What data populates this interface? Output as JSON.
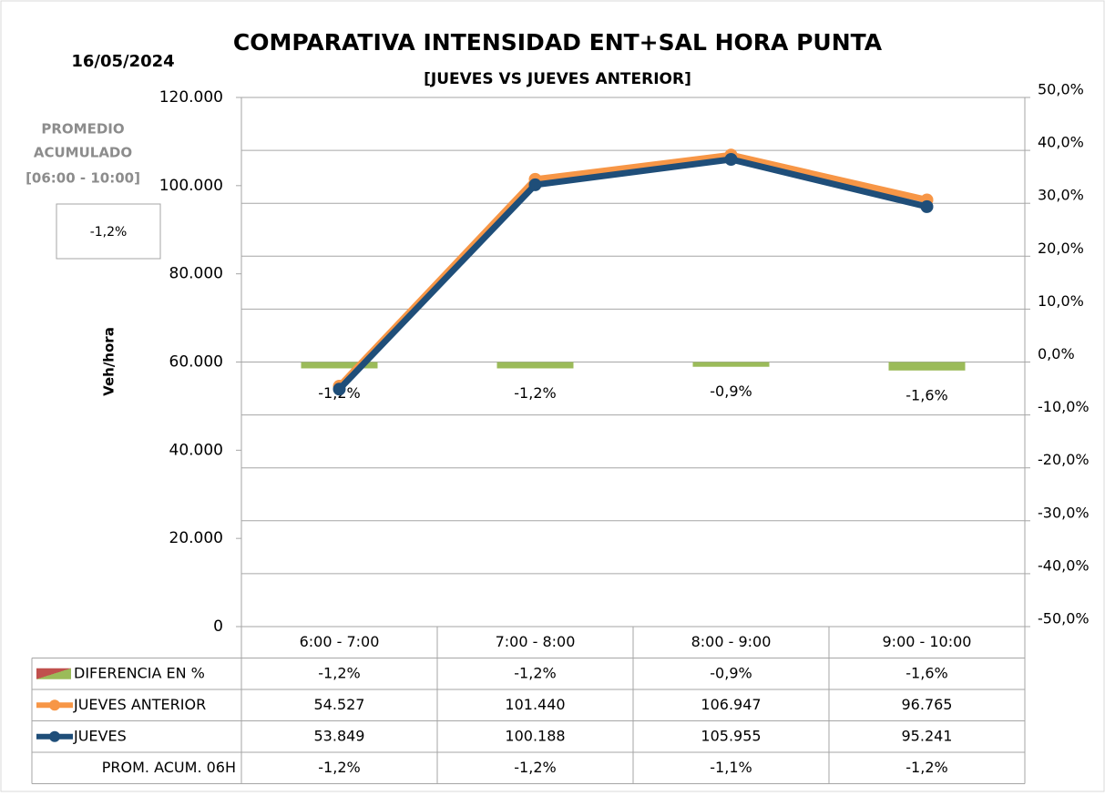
{
  "chart_data": {
    "type": "combo",
    "title": "COMPARATIVA INTENSIDAD ENT+SAL HORA PUNTA",
    "subtitle": "[JUEVES VS JUEVES ANTERIOR]",
    "date": "16/05/2024",
    "summary": {
      "title_lines": [
        "PROMEDIO",
        "ACUMULADO",
        "[06:00 - 10:00]"
      ],
      "value": -1.2,
      "value_label": "-1,2%"
    },
    "y_label": "Veh/hora",
    "categories": [
      "6:00 - 7:00",
      "7:00 - 8:00",
      "8:00 - 9:00",
      "9:00 - 10:00"
    ],
    "ylim": [
      0,
      120000
    ],
    "yticks": [
      0,
      {
        "value": 20000,
        "label": "20.000"
      },
      {
        "value": 40000,
        "label": "40.000"
      },
      {
        "value": 60000,
        "label": "60.000"
      },
      {
        "value": 80000,
        "label": "80.000"
      },
      {
        "value": 100000,
        "label": "100.000"
      },
      {
        "value": 120000,
        "label": "120.000"
      }
    ],
    "y2lim": [
      -50,
      50
    ],
    "y2ticks": [
      {
        "value": -50,
        "label": "-50,0%"
      },
      {
        "value": -40,
        "label": "-40,0%"
      },
      {
        "value": -30,
        "label": "-30,0%"
      },
      {
        "value": -20,
        "label": "-20,0%"
      },
      {
        "value": -10,
        "label": "-10,0%"
      },
      {
        "value": 0,
        "label": "0,0%"
      },
      {
        "value": 10,
        "label": "10,0%"
      },
      {
        "value": 20,
        "label": "20,0%"
      },
      {
        "value": 30,
        "label": "30,0%"
      },
      {
        "value": 40,
        "label": "40,0%"
      },
      {
        "value": 50,
        "label": "50,0%"
      }
    ],
    "grid": true,
    "series": [
      {
        "name": "DIFERENCIA EN %",
        "type": "bar",
        "axis": "y2",
        "color": "#9bbb59",
        "values": [
          -1.2,
          -1.2,
          -0.9,
          -1.6
        ],
        "value_labels": [
          "-1,2%",
          "-1,2%",
          "-0,9%",
          "-1,6%"
        ]
      },
      {
        "name": "JUEVES ANTERIOR",
        "type": "line",
        "axis": "y",
        "color": "#f79646",
        "values": [
          54527,
          101440,
          106947,
          96765
        ],
        "value_labels": [
          "54.527",
          "101.440",
          "106.947",
          "96.765"
        ]
      },
      {
        "name": "JUEVES",
        "type": "line",
        "axis": "y",
        "color": "#1f4e79",
        "values": [
          53849,
          100188,
          105955,
          95241
        ],
        "value_labels": [
          "53.849",
          "100.188",
          "105.955",
          "95.241"
        ]
      }
    ],
    "table_extra": {
      "name": "PROM. ACUM. 06H",
      "values": [
        -1.2,
        -1.2,
        -1.1,
        -1.2
      ],
      "value_labels": [
        "-1,2%",
        "-1,2%",
        "-1,1%",
        "-1,2%"
      ]
    }
  }
}
